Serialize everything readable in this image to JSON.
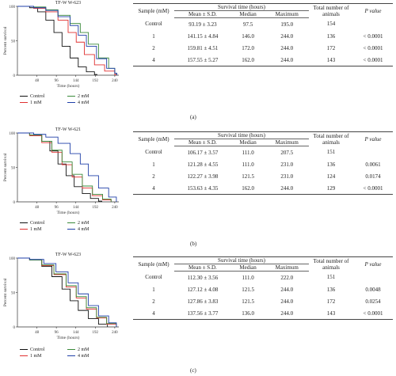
{
  "panels": [
    {
      "caption": "(a)",
      "chart": {
        "title": "TF-W W-623",
        "ylabel": "Percent survival",
        "xlabel": "Time (hours)"
      },
      "table": {
        "rows": [
          {
            "sample": "Control",
            "mean": "93.19 ± 3.23",
            "median": "97.5",
            "max": "195.0",
            "total": "154",
            "p": ""
          },
          {
            "sample": "1",
            "mean": "141.15 ± 4.84",
            "median": "146.0",
            "max": "244.0",
            "total": "136",
            "p": "< 0.0001"
          },
          {
            "sample": "2",
            "mean": "159.81 ± 4.51",
            "median": "172.0",
            "max": "244.0",
            "total": "172",
            "p": "< 0.0001"
          },
          {
            "sample": "4",
            "mean": "157.55 ± 5.27",
            "median": "162.0",
            "max": "244.0",
            "total": "143",
            "p": "< 0.0001"
          }
        ]
      }
    },
    {
      "caption": "(b)",
      "chart": {
        "title": "TF-W W-621",
        "ylabel": "Percent survival",
        "xlabel": "Time (hours)"
      },
      "table": {
        "rows": [
          {
            "sample": "Control",
            "mean": "106.17 ± 3.57",
            "median": "111.0",
            "max": "207.5",
            "total": "151",
            "p": ""
          },
          {
            "sample": "1",
            "mean": "121.28 ± 4.55",
            "median": "111.0",
            "max": "231.0",
            "total": "136",
            "p": "0.0061"
          },
          {
            "sample": "2",
            "mean": "122.27 ± 3.98",
            "median": "121.5",
            "max": "231.0",
            "total": "124",
            "p": "0.0174"
          },
          {
            "sample": "4",
            "mean": "153.63 ± 4.35",
            "median": "162.0",
            "max": "244.0",
            "total": "129",
            "p": "< 0.0001"
          }
        ]
      }
    },
    {
      "caption": "(c)",
      "chart": {
        "title": "TF-W W-623",
        "ylabel": "Percent survival",
        "xlabel": "Time (hours)"
      },
      "table": {
        "rows": [
          {
            "sample": "Control",
            "mean": "112.30 ± 3.56",
            "median": "111.0",
            "max": "222.0",
            "total": "151",
            "p": ""
          },
          {
            "sample": "1",
            "mean": "127.12 ± 4.08",
            "median": "121.5",
            "max": "244.0",
            "total": "136",
            "p": "0.0048"
          },
          {
            "sample": "2",
            "mean": "127.86 ± 3.83",
            "median": "121.5",
            "max": "244.0",
            "total": "172",
            "p": "0.0254"
          },
          {
            "sample": "4",
            "mean": "137.56 ± 3.77",
            "median": "136.0",
            "max": "244.0",
            "total": "143",
            "p": "< 0.0001"
          }
        ]
      }
    }
  ],
  "table_headers": {
    "sample": "Sample (mM)",
    "survival_time": "Survival time (hours)",
    "mean": "Mean ± S.D.",
    "median": "Median",
    "maximum": "Maximum",
    "total": "Total number of animals",
    "p": "P value"
  },
  "legend": {
    "control": "Control",
    "mm1": "1 mM",
    "mm2": "2 mM",
    "mm4": "4 mM"
  },
  "series_colors": {
    "control": "#111111",
    "mm1": "#e03030",
    "mm2": "#3a8a3a",
    "mm4": "#1f3fa8"
  },
  "chart_data": [
    {
      "type": "line",
      "title": "TF-W W-623",
      "xlabel": "Time (hours)",
      "ylabel": "Percent survival",
      "x_ticks": [
        48,
        96,
        144,
        192,
        240
      ],
      "y_ticks": [
        0,
        50,
        100
      ],
      "xlim": [
        0,
        250
      ],
      "ylim": [
        0,
        100
      ],
      "series": [
        {
          "key": "control",
          "x": [
            0,
            30,
            50,
            70,
            90,
            110,
            130,
            150,
            170,
            190,
            196
          ],
          "y": [
            100,
            98,
            92,
            80,
            62,
            42,
            25,
            12,
            5,
            1,
            0
          ]
        },
        {
          "key": "mm1",
          "x": [
            0,
            40,
            70,
            100,
            125,
            145,
            165,
            190,
            215,
            240,
            245
          ],
          "y": [
            100,
            97,
            92,
            80,
            62,
            48,
            30,
            15,
            6,
            1,
            0
          ]
        },
        {
          "key": "mm2",
          "x": [
            0,
            40,
            70,
            100,
            130,
            155,
            175,
            200,
            225,
            240,
            245
          ],
          "y": [
            100,
            99,
            95,
            87,
            75,
            62,
            45,
            25,
            10,
            3,
            0
          ]
        },
        {
          "key": "mm4",
          "x": [
            0,
            40,
            70,
            100,
            130,
            150,
            170,
            195,
            220,
            240,
            245
          ],
          "y": [
            100,
            98,
            94,
            85,
            72,
            58,
            42,
            24,
            10,
            3,
            0
          ]
        }
      ]
    },
    {
      "type": "line",
      "title": "TF-W W-621",
      "xlabel": "Time (hours)",
      "ylabel": "Percent survival",
      "x_ticks": [
        48,
        96,
        144,
        192,
        240
      ],
      "y_ticks": [
        0,
        50,
        100
      ],
      "xlim": [
        0,
        250
      ],
      "ylim": [
        0,
        100
      ],
      "series": [
        {
          "key": "control",
          "x": [
            0,
            30,
            60,
            80,
            100,
            120,
            140,
            160,
            180,
            200,
            208
          ],
          "y": [
            100,
            97,
            88,
            74,
            55,
            38,
            22,
            12,
            5,
            1,
            0
          ]
        },
        {
          "key": "mm1",
          "x": [
            0,
            30,
            60,
            85,
            110,
            135,
            160,
            185,
            210,
            231
          ],
          "y": [
            100,
            96,
            86,
            72,
            54,
            36,
            20,
            9,
            3,
            0
          ]
        },
        {
          "key": "mm2",
          "x": [
            0,
            30,
            60,
            85,
            110,
            135,
            160,
            185,
            210,
            231
          ],
          "y": [
            100,
            97,
            88,
            75,
            58,
            40,
            23,
            11,
            4,
            0
          ]
        },
        {
          "key": "mm4",
          "x": [
            0,
            40,
            70,
            100,
            130,
            155,
            175,
            200,
            225,
            244
          ],
          "y": [
            100,
            98,
            94,
            85,
            70,
            55,
            38,
            20,
            7,
            0
          ]
        }
      ]
    },
    {
      "type": "line",
      "title": "TF-W W-623",
      "xlabel": "Time (hours)",
      "ylabel": "Percent survival",
      "x_ticks": [
        48,
        96,
        144,
        192,
        240
      ],
      "y_ticks": [
        0,
        50,
        100
      ],
      "xlim": [
        0,
        250
      ],
      "ylim": [
        0,
        100
      ],
      "series": [
        {
          "key": "control",
          "x": [
            0,
            30,
            60,
            85,
            110,
            130,
            150,
            175,
            200,
            222
          ],
          "y": [
            100,
            97,
            88,
            73,
            55,
            38,
            24,
            12,
            4,
            0
          ]
        },
        {
          "key": "mm1",
          "x": [
            0,
            30,
            60,
            90,
            120,
            145,
            170,
            195,
            220,
            244
          ],
          "y": [
            100,
            97,
            89,
            76,
            58,
            42,
            26,
            13,
            4,
            0
          ]
        },
        {
          "key": "mm2",
          "x": [
            0,
            30,
            60,
            90,
            120,
            145,
            170,
            195,
            220,
            244
          ],
          "y": [
            100,
            97,
            90,
            77,
            60,
            44,
            28,
            14,
            5,
            0
          ]
        },
        {
          "key": "mm4",
          "x": [
            0,
            30,
            65,
            95,
            125,
            150,
            175,
            200,
            225,
            244
          ],
          "y": [
            100,
            98,
            92,
            80,
            64,
            48,
            31,
            16,
            6,
            0
          ]
        }
      ]
    }
  ]
}
